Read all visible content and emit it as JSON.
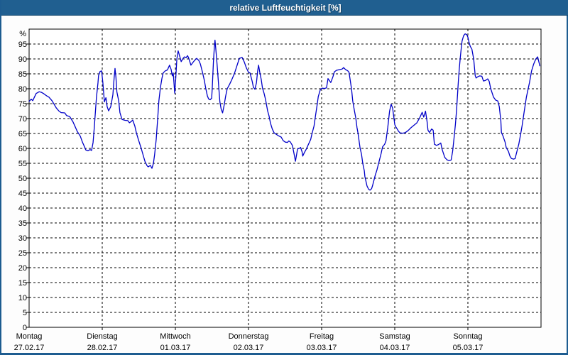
{
  "window": {
    "title": "relative Luftfeuchtigkeit [%]"
  },
  "colors": {
    "titlebar_bg": "#205f90",
    "window_border": "#1d5c90",
    "line": "#0000c8",
    "grid": "#000000",
    "axis": "#000000",
    "text": "#000000",
    "plot_bg": "#ffffff"
  },
  "chart_data": {
    "type": "line",
    "title": "relative Luftfeuchtigkeit [%]",
    "ylabel": "%",
    "ylim": [
      0,
      100
    ],
    "yticks": [
      95,
      90,
      85,
      80,
      75,
      70,
      65,
      60,
      55,
      50,
      45,
      40,
      35,
      30,
      25,
      20,
      15,
      10,
      5,
      0
    ],
    "grid": "dashed",
    "legend_position": "none",
    "x_days": [
      {
        "label": "Montag",
        "date": "27.02.17"
      },
      {
        "label": "Dienstag",
        "date": "28.02.17"
      },
      {
        "label": "Mittwoch",
        "date": "01.03.17"
      },
      {
        "label": "Donnerstag",
        "date": "02.03.17"
      },
      {
        "label": "Freitag",
        "date": "03.03.17"
      },
      {
        "label": "Samstag",
        "date": "04.03.17"
      },
      {
        "label": "Sonntag",
        "date": "05.03.17"
      }
    ],
    "x_unit": "hours_from_start",
    "x_range_hours": [
      0,
      168
    ],
    "series": [
      {
        "name": "relative Luftfeuchtigkeit",
        "color": "#0000c8",
        "points": [
          [
            0,
            75.8
          ],
          [
            0.7,
            76.5
          ],
          [
            1.2,
            76.0
          ],
          [
            2.3,
            78.4
          ],
          [
            3.3,
            79.0
          ],
          [
            4.0,
            78.8
          ],
          [
            4.7,
            78.4
          ],
          [
            5.8,
            77.6
          ],
          [
            6.5,
            77.2
          ],
          [
            7.5,
            76.0
          ],
          [
            8.2,
            74.8
          ],
          [
            8.9,
            73.6
          ],
          [
            9.8,
            72.5
          ],
          [
            10.5,
            72.0
          ],
          [
            11.7,
            71.9
          ],
          [
            12.3,
            71.0
          ],
          [
            13.3,
            70.7
          ],
          [
            14.4,
            68.9
          ],
          [
            15.1,
            67.3
          ],
          [
            15.8,
            65.7
          ],
          [
            16.8,
            64.1
          ],
          [
            17.5,
            62.1
          ],
          [
            18.2,
            60.5
          ],
          [
            18.6,
            59.5
          ],
          [
            19.3,
            59.2
          ],
          [
            20.0,
            59.6
          ],
          [
            20.5,
            59.3
          ],
          [
            21.0,
            62.0
          ],
          [
            21.4,
            67.0
          ],
          [
            22.1,
            77.0
          ],
          [
            22.6,
            82.0
          ],
          [
            22.8,
            84.4
          ],
          [
            23.3,
            85.8
          ],
          [
            23.8,
            86.0
          ],
          [
            24.2,
            82.0
          ],
          [
            24.7,
            75.6
          ],
          [
            25.2,
            77.0
          ],
          [
            25.6,
            74.0
          ],
          [
            26.1,
            72.6
          ],
          [
            26.8,
            74.0
          ],
          [
            27.5,
            78.0
          ],
          [
            27.9,
            83.5
          ],
          [
            28.2,
            86.8
          ],
          [
            28.5,
            83.8
          ],
          [
            28.8,
            79.0
          ],
          [
            29.4,
            75.9
          ],
          [
            29.8,
            72.0
          ],
          [
            30.5,
            69.7
          ],
          [
            31.5,
            69.4
          ],
          [
            32.4,
            69.3
          ],
          [
            32.9,
            68.6
          ],
          [
            33.5,
            69.0
          ],
          [
            34.0,
            69.5
          ],
          [
            34.7,
            67.5
          ],
          [
            35.2,
            65.2
          ],
          [
            35.9,
            62.8
          ],
          [
            36.8,
            60.0
          ],
          [
            37.5,
            57.5
          ],
          [
            38.0,
            55.7
          ],
          [
            38.7,
            54.2
          ],
          [
            39.1,
            53.8
          ],
          [
            39.8,
            54.3
          ],
          [
            40.3,
            53.3
          ],
          [
            40.8,
            55.0
          ],
          [
            41.2,
            58.0
          ],
          [
            41.7,
            63.0
          ],
          [
            42.2,
            70.0
          ],
          [
            42.6,
            76.0
          ],
          [
            43.1,
            80.5
          ],
          [
            43.6,
            83.5
          ],
          [
            44.0,
            85.3
          ],
          [
            44.7,
            86.0
          ],
          [
            45.4,
            86.3
          ],
          [
            46.1,
            87.9
          ],
          [
            46.6,
            86.5
          ],
          [
            47.0,
            84.3
          ],
          [
            47.3,
            85.3
          ],
          [
            47.8,
            78.5
          ],
          [
            48.1,
            83.0
          ],
          [
            48.5,
            90.0
          ],
          [
            48.9,
            92.7
          ],
          [
            49.4,
            91.0
          ],
          [
            49.9,
            89.1
          ],
          [
            50.6,
            90.3
          ],
          [
            51.0,
            90.7
          ],
          [
            51.5,
            90.4
          ],
          [
            52.0,
            91.1
          ],
          [
            52.4,
            90.2
          ],
          [
            53.1,
            87.9
          ],
          [
            53.6,
            88.6
          ],
          [
            54.3,
            89.5
          ],
          [
            55.0,
            90.2
          ],
          [
            55.7,
            89.5
          ],
          [
            56.2,
            88.3
          ],
          [
            56.9,
            85.5
          ],
          [
            57.5,
            82.8
          ],
          [
            58.0,
            80.0
          ],
          [
            58.5,
            77.6
          ],
          [
            58.9,
            76.6
          ],
          [
            59.4,
            76.3
          ],
          [
            59.9,
            76.8
          ],
          [
            60.1,
            80.0
          ],
          [
            60.5,
            89.0
          ],
          [
            60.8,
            94.0
          ],
          [
            61.0,
            96.3
          ],
          [
            61.2,
            94.0
          ],
          [
            61.5,
            90.7
          ],
          [
            61.9,
            85.2
          ],
          [
            62.3,
            79.6
          ],
          [
            62.6,
            75.6
          ],
          [
            63.0,
            73.3
          ],
          [
            63.5,
            71.9
          ],
          [
            64.0,
            74.5
          ],
          [
            64.5,
            77.5
          ],
          [
            65.0,
            80.0
          ],
          [
            65.8,
            81.5
          ],
          [
            66.5,
            83.0
          ],
          [
            67.4,
            85.2
          ],
          [
            68.3,
            88.0
          ],
          [
            69.0,
            90.2
          ],
          [
            69.9,
            90.5
          ],
          [
            70.6,
            89.0
          ],
          [
            71.3,
            87.0
          ],
          [
            72.0,
            85.5
          ],
          [
            72.5,
            85.3
          ],
          [
            73.2,
            82.5
          ],
          [
            73.6,
            80.5
          ],
          [
            74.1,
            79.8
          ],
          [
            74.6,
            82.0
          ],
          [
            75.0,
            86.0
          ],
          [
            75.3,
            87.9
          ],
          [
            75.7,
            85.5
          ],
          [
            76.2,
            83.0
          ],
          [
            76.6,
            80.2
          ],
          [
            77.1,
            78.5
          ],
          [
            77.6,
            76.4
          ],
          [
            78.3,
            72.5
          ],
          [
            78.7,
            71.0
          ],
          [
            79.2,
            68.5
          ],
          [
            79.8,
            66.5
          ],
          [
            80.4,
            65.2
          ],
          [
            81.0,
            64.8
          ],
          [
            81.7,
            64.3
          ],
          [
            82.7,
            63.8
          ],
          [
            83.4,
            62.6
          ],
          [
            84.1,
            62.1
          ],
          [
            84.8,
            62.0
          ],
          [
            85.2,
            62.5
          ],
          [
            85.7,
            62.2
          ],
          [
            86.4,
            61.0
          ],
          [
            86.8,
            59.0
          ],
          [
            87.1,
            57.4
          ],
          [
            87.4,
            55.7
          ],
          [
            87.8,
            58.0
          ],
          [
            88.1,
            59.8
          ],
          [
            88.7,
            60.0
          ],
          [
            89.1,
            60.3
          ],
          [
            89.6,
            58.8
          ],
          [
            89.8,
            57.4
          ],
          [
            90.3,
            58.5
          ],
          [
            91.0,
            59.8
          ],
          [
            91.7,
            61.4
          ],
          [
            92.4,
            63.0
          ],
          [
            92.8,
            64.8
          ],
          [
            93.5,
            67.5
          ],
          [
            94.0,
            71.0
          ],
          [
            94.5,
            74.5
          ],
          [
            94.9,
            77.4
          ],
          [
            95.6,
            79.8
          ],
          [
            96.2,
            80.2
          ],
          [
            96.9,
            80.1
          ],
          [
            97.6,
            80.3
          ],
          [
            98.1,
            83.4
          ],
          [
            99.0,
            82.1
          ],
          [
            99.7,
            84.0
          ],
          [
            100.2,
            85.7
          ],
          [
            100.9,
            86.2
          ],
          [
            101.8,
            86.4
          ],
          [
            102.7,
            86.6
          ],
          [
            103.2,
            87.1
          ],
          [
            103.9,
            86.4
          ],
          [
            104.6,
            86.0
          ],
          [
            105.0,
            85.5
          ],
          [
            105.5,
            82.0
          ],
          [
            105.8,
            80.0
          ],
          [
            106.2,
            75.9
          ],
          [
            106.7,
            73.0
          ],
          [
            107.2,
            70.2
          ],
          [
            107.6,
            67.0
          ],
          [
            107.9,
            65.3
          ],
          [
            108.6,
            60.2
          ],
          [
            109.1,
            58.0
          ],
          [
            109.5,
            55.0
          ],
          [
            110.0,
            52.5
          ],
          [
            110.2,
            50.6
          ],
          [
            110.9,
            47.4
          ],
          [
            111.4,
            46.3
          ],
          [
            111.9,
            46.0
          ],
          [
            112.4,
            46.5
          ],
          [
            112.7,
            47.5
          ],
          [
            113.2,
            49.4
          ],
          [
            113.6,
            51.0
          ],
          [
            114.1,
            52.6
          ],
          [
            114.8,
            55.4
          ],
          [
            115.5,
            58.2
          ],
          [
            116.0,
            60.5
          ],
          [
            116.7,
            61.4
          ],
          [
            117.1,
            62.5
          ],
          [
            117.7,
            66.9
          ],
          [
            118.3,
            72.5
          ],
          [
            118.8,
            74.8
          ],
          [
            119.3,
            73.5
          ],
          [
            119.8,
            69.7
          ],
          [
            120.0,
            68.0
          ],
          [
            120.3,
            67.3
          ],
          [
            120.8,
            66.5
          ],
          [
            121.2,
            65.8
          ],
          [
            121.7,
            65.2
          ],
          [
            122.6,
            65.1
          ],
          [
            123.5,
            65.3
          ],
          [
            124.4,
            66.0
          ],
          [
            125.3,
            66.9
          ],
          [
            126.2,
            67.7
          ],
          [
            127.2,
            68.5
          ],
          [
            128.1,
            70.1
          ],
          [
            129.0,
            72.1
          ],
          [
            129.5,
            70.5
          ],
          [
            130.1,
            72.5
          ],
          [
            130.6,
            69.0
          ],
          [
            130.9,
            66.1
          ],
          [
            131.4,
            65.3
          ],
          [
            132.1,
            66.5
          ],
          [
            132.6,
            66.1
          ],
          [
            133.0,
            61.4
          ],
          [
            133.7,
            61.0
          ],
          [
            134.4,
            61.3
          ],
          [
            135.1,
            61.8
          ],
          [
            135.5,
            59.8
          ],
          [
            136.4,
            57.0
          ],
          [
            137.1,
            56.2
          ],
          [
            137.8,
            55.9
          ],
          [
            138.5,
            56.1
          ],
          [
            139.0,
            59.0
          ],
          [
            139.4,
            63.0
          ],
          [
            139.9,
            68.0
          ],
          [
            140.3,
            73.0
          ],
          [
            140.6,
            78.0
          ],
          [
            140.9,
            83.0
          ],
          [
            141.2,
            87.0
          ],
          [
            141.5,
            90.5
          ],
          [
            141.8,
            93.5
          ],
          [
            142.1,
            96.0
          ],
          [
            142.6,
            97.8
          ],
          [
            143.1,
            98.4
          ],
          [
            143.6,
            98.2
          ],
          [
            144.0,
            97.3
          ],
          [
            144.4,
            95.5
          ],
          [
            144.8,
            94.2
          ],
          [
            145.3,
            93.3
          ],
          [
            145.9,
            89.9
          ],
          [
            146.4,
            84.4
          ],
          [
            146.7,
            83.6
          ],
          [
            147.2,
            84.0
          ],
          [
            147.9,
            84.3
          ],
          [
            148.6,
            84.2
          ],
          [
            149.1,
            82.6
          ],
          [
            149.8,
            82.8
          ],
          [
            150.5,
            83.3
          ],
          [
            151.0,
            82.5
          ],
          [
            151.5,
            80.0
          ],
          [
            152.4,
            77.2
          ],
          [
            153.1,
            76.2
          ],
          [
            153.8,
            75.9
          ],
          [
            154.3,
            74.0
          ],
          [
            154.8,
            69.3
          ],
          [
            155.0,
            65.3
          ],
          [
            155.5,
            64.2
          ],
          [
            156.2,
            62.1
          ],
          [
            156.6,
            60.2
          ],
          [
            157.3,
            59.0
          ],
          [
            157.8,
            57.4
          ],
          [
            158.3,
            56.6
          ],
          [
            159.0,
            56.4
          ],
          [
            159.5,
            56.6
          ],
          [
            160.2,
            59.4
          ],
          [
            160.7,
            61.4
          ],
          [
            161.4,
            65.3
          ],
          [
            161.8,
            67.7
          ],
          [
            162.5,
            72.5
          ],
          [
            163.2,
            77.2
          ],
          [
            164.2,
            82.0
          ],
          [
            164.9,
            86.0
          ],
          [
            165.6,
            88.3
          ],
          [
            166.3,
            90.0
          ],
          [
            166.9,
            90.7
          ],
          [
            167.3,
            89.0
          ],
          [
            167.6,
            87.7
          ]
        ]
      }
    ]
  }
}
